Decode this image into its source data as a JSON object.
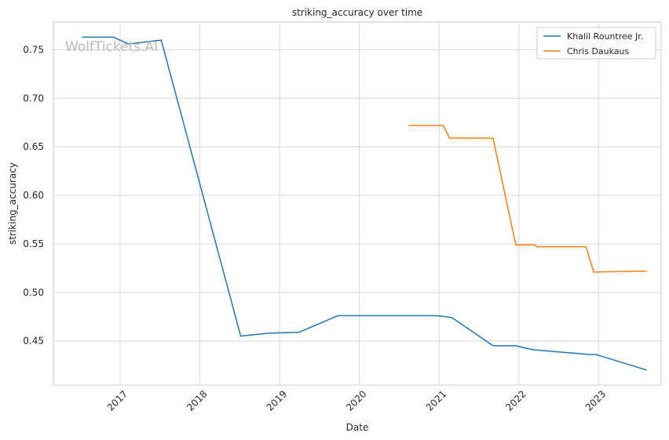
{
  "chart_data": {
    "type": "line",
    "title": "striking_accuracy over time",
    "xlabel": "Date",
    "ylabel": "striking_accuracy",
    "watermark": "WolfTickets.AI",
    "xlim": [
      "2016-03-01",
      "2023-10-15"
    ],
    "ylim": [
      0.4045,
      0.7787
    ],
    "x_ticks": [
      "2017-01-01",
      "2018-01-01",
      "2019-01-01",
      "2020-01-01",
      "2021-01-01",
      "2022-01-01",
      "2023-01-01"
    ],
    "x_tick_labels": [
      "2017",
      "2018",
      "2019",
      "2020",
      "2021",
      "2022",
      "2023"
    ],
    "y_ticks": [
      0.45,
      0.5,
      0.55,
      0.6,
      0.65,
      0.7,
      0.75
    ],
    "y_tick_labels": [
      "0.45",
      "0.50",
      "0.55",
      "0.60",
      "0.65",
      "0.70",
      "0.75"
    ],
    "grid": true,
    "legend": "top-right",
    "series": [
      {
        "name": "Khalil Rountree Jr.",
        "color": "#1f77b4",
        "points": [
          [
            "2016-07-10",
            0.763
          ],
          [
            "2016-12-01",
            0.763
          ],
          [
            "2017-02-08",
            0.756
          ],
          [
            "2017-07-08",
            0.76
          ],
          [
            "2018-07-07",
            0.455
          ],
          [
            "2018-11-15",
            0.458
          ],
          [
            "2019-04-01",
            0.459
          ],
          [
            "2019-09-25",
            0.476
          ],
          [
            "2020-12-20",
            0.476
          ],
          [
            "2021-02-01",
            0.475
          ],
          [
            "2021-03-01",
            0.474
          ],
          [
            "2021-09-05",
            0.445
          ],
          [
            "2021-12-20",
            0.445
          ],
          [
            "2022-03-05",
            0.441
          ],
          [
            "2022-11-20",
            0.436
          ],
          [
            "2022-12-20",
            0.436
          ],
          [
            "2023-08-10",
            0.42
          ]
        ]
      },
      {
        "name": "Chris Daukaus",
        "color": "#ff7f0e",
        "points": [
          [
            "2020-08-15",
            0.672
          ],
          [
            "2021-01-20",
            0.672
          ],
          [
            "2021-02-18",
            0.659
          ],
          [
            "2021-09-05",
            0.659
          ],
          [
            "2021-12-18",
            0.549
          ],
          [
            "2022-03-15",
            0.549
          ],
          [
            "2022-03-25",
            0.547
          ],
          [
            "2022-11-05",
            0.547
          ],
          [
            "2022-12-10",
            0.521
          ],
          [
            "2023-08-10",
            0.522
          ]
        ]
      }
    ]
  }
}
